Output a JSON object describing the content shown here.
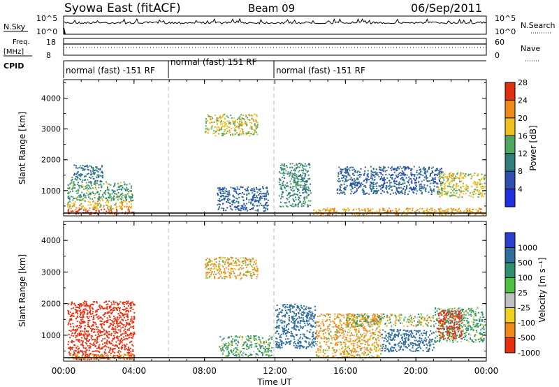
{
  "header": {
    "station": "Syowa East (fitACF)",
    "beam": "Beam 09",
    "date": "06/Sep/2011"
  },
  "top_panels": {
    "nsky_label": "N.Sky",
    "nsky_ticks": [
      "10^5",
      "10^0"
    ],
    "nsearch_label": "N.Search",
    "nsearch_ticks": [
      "10^5",
      "10^0"
    ],
    "freq_label": "Freq.",
    "freq_unit": "[MHz]",
    "freq_ticks": [
      "18",
      "8"
    ],
    "nave_label": "Nave",
    "nave_ticks": [
      "60",
      "0"
    ],
    "cpid_label": "CPID",
    "cpid_segments": [
      {
        "start_h": 0,
        "end_h": 6,
        "label": "normal (fast) -151 RF"
      },
      {
        "start_h": 6,
        "end_h": 12,
        "label": "normal (fast) 151 RF"
      },
      {
        "start_h": 12,
        "end_h": 24,
        "label": "normal (fast) -151 RF"
      }
    ]
  },
  "xaxis": {
    "title": "Time UT",
    "ticks": [
      "00:00",
      "04:00",
      "08:00",
      "12:00",
      "16:00",
      "20:00",
      "00:00"
    ]
  },
  "colorbars": {
    "power": {
      "title": "Power [dB]",
      "labels": [
        "4",
        "8",
        "12",
        "16",
        "20",
        "24",
        "28"
      ],
      "colors": [
        "#2030e0",
        "#2c4fb0",
        "#2f7f7a",
        "#4fa860",
        "#f0c020",
        "#f08a1a",
        "#e03010"
      ]
    },
    "velocity": {
      "title": "Velocity [m s⁻¹]",
      "labels": [
        "1000",
        "500",
        "100",
        "25",
        "-25",
        "-100",
        "-500",
        "-1000"
      ],
      "colors": [
        "#2a3fd0",
        "#2f6f9a",
        "#2f9070",
        "#50c040",
        "#c0c0c0",
        "#f0d020",
        "#f08a1a",
        "#e83010"
      ]
    }
  },
  "chart_data": [
    {
      "type": "heatmap",
      "title": "Power [dB]",
      "xlabel": "Time UT",
      "ylabel": "Slant Range [km]",
      "xlim": [
        0,
        24
      ],
      "ylim": [
        180,
        4600
      ],
      "yticks": [
        "1000",
        "2000",
        "3000",
        "4000"
      ],
      "zlim": [
        0,
        30
      ],
      "scatter_regions": [
        {
          "t0": 0.2,
          "t1": 3.9,
          "r0": 250,
          "r1": 420,
          "z": 28
        },
        {
          "t0": 0.2,
          "t1": 3.9,
          "r0": 420,
          "r1": 700,
          "z": 20
        },
        {
          "t0": 0.2,
          "t1": 3.9,
          "r0": 700,
          "r1": 1300,
          "z": 14
        },
        {
          "t0": 0.4,
          "t1": 2.2,
          "r0": 1300,
          "r1": 1850,
          "z": 10
        },
        {
          "t0": 8.7,
          "t1": 11.6,
          "r0": 350,
          "r1": 1150,
          "z": 8
        },
        {
          "t0": 8.0,
          "t1": 11.0,
          "r0": 2800,
          "r1": 3500,
          "z": 18
        },
        {
          "t0": 12.2,
          "t1": 14.0,
          "r0": 500,
          "r1": 1900,
          "z": 12
        },
        {
          "t0": 14.0,
          "t1": 24.0,
          "r0": 220,
          "r1": 450,
          "z": 22
        },
        {
          "t0": 15.5,
          "t1": 21.5,
          "r0": 900,
          "r1": 1800,
          "z": 8
        },
        {
          "t0": 21.2,
          "t1": 23.9,
          "r0": 800,
          "r1": 1600,
          "z": 18
        }
      ]
    },
    {
      "type": "heatmap",
      "title": "Velocity [m s⁻¹]",
      "xlabel": "Time UT",
      "ylabel": "Slant Range [km]",
      "xlim": [
        0,
        24
      ],
      "ylim": [
        180,
        4600
      ],
      "yticks": [
        "1000",
        "2000",
        "3000",
        "4000"
      ],
      "zlim": [
        -1000,
        1000
      ],
      "scatter_regions": [
        {
          "t0": 0.2,
          "t1": 4.0,
          "r0": 250,
          "r1": 2100,
          "z": -500
        },
        {
          "t0": 0.2,
          "t1": 4.0,
          "r0": 250,
          "r1": 420,
          "z": -100
        },
        {
          "t0": 8.8,
          "t1": 11.8,
          "r0": 350,
          "r1": 1000,
          "z": 100
        },
        {
          "t0": 8.0,
          "t1": 11.0,
          "r0": 2800,
          "r1": 3500,
          "z": -100
        },
        {
          "t0": 12.0,
          "t1": 14.3,
          "r0": 600,
          "r1": 2000,
          "z": 500
        },
        {
          "t0": 14.3,
          "t1": 18.0,
          "r0": 300,
          "r1": 1700,
          "z": -100
        },
        {
          "t0": 16.0,
          "t1": 21.0,
          "r0": 1300,
          "r1": 1700,
          "z": 0
        },
        {
          "t0": 18.0,
          "t1": 21.0,
          "r0": 500,
          "r1": 1200,
          "z": 500
        },
        {
          "t0": 21.0,
          "t1": 23.9,
          "r0": 800,
          "r1": 1900,
          "z": 100
        },
        {
          "t0": 21.2,
          "t1": 22.6,
          "r0": 900,
          "r1": 1800,
          "z": -500
        }
      ]
    }
  ]
}
